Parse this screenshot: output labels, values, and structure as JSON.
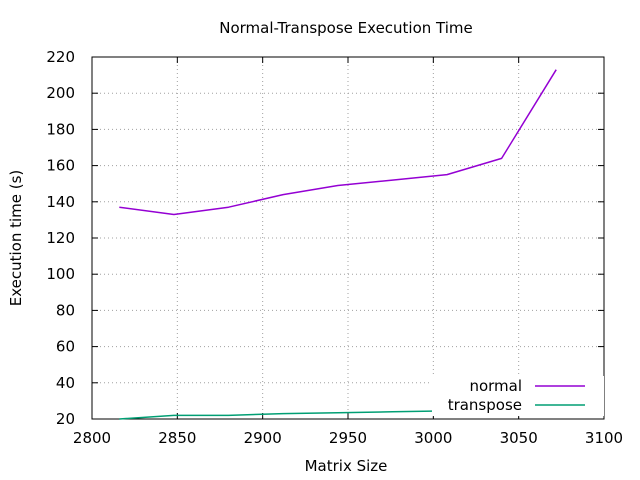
{
  "chart_data": {
    "type": "line",
    "title": "Normal-Transpose Execution Time",
    "xlabel": "Matrix Size",
    "ylabel": "Execution time (s)",
    "xlim": [
      2800,
      3100
    ],
    "ylim": [
      20,
      220
    ],
    "xticks": [
      2800,
      2850,
      2900,
      2950,
      3000,
      3050,
      3100
    ],
    "yticks": [
      20,
      40,
      60,
      80,
      100,
      120,
      140,
      160,
      180,
      200,
      220
    ],
    "grid": true,
    "legend_position": "bottom-right",
    "series": [
      {
        "name": "normal",
        "color": "#9400d3",
        "x": [
          2816,
          2848,
          2880,
          2912,
          2944,
          2976,
          3008,
          3040,
          3072
        ],
        "y": [
          137,
          133,
          137,
          144,
          149,
          152,
          155,
          164,
          213
        ]
      },
      {
        "name": "transpose",
        "color": "#009e73",
        "x": [
          2816,
          2848,
          2880,
          2912,
          2944,
          2976,
          3008,
          3040,
          3072,
          3088
        ],
        "y": [
          20,
          22,
          22,
          23,
          23.5,
          24,
          24.5,
          25,
          26.5,
          27.5
        ]
      }
    ]
  }
}
